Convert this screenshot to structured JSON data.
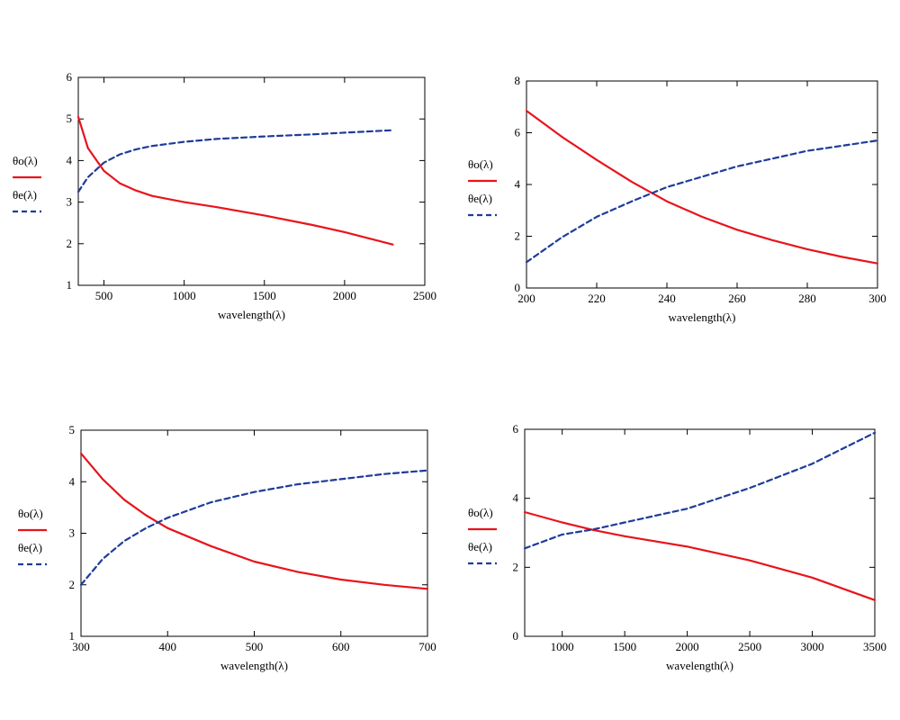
{
  "chart_data": [
    {
      "type": "line",
      "xlabel": "wavelength(λ)",
      "xlim": [
        340,
        2500
      ],
      "ylim": [
        1,
        6
      ],
      "xticks": [
        500,
        1000,
        1500,
        2000,
        2500
      ],
      "yticks": [
        1,
        2,
        3,
        4,
        5,
        6
      ],
      "legend": [
        "θo(λ)",
        "θe(λ)"
      ],
      "legend_position": "left-outside",
      "series": [
        {
          "name": "θo(λ)",
          "color": "#e8141c",
          "style": "solid",
          "x": [
            340,
            400,
            500,
            600,
            700,
            800,
            1000,
            1200,
            1500,
            1800,
            2000,
            2300
          ],
          "y": [
            5.05,
            4.3,
            3.75,
            3.45,
            3.28,
            3.15,
            3.0,
            2.88,
            2.68,
            2.45,
            2.28,
            1.98
          ]
        },
        {
          "name": "θe(λ)",
          "color": "#1f3c9a",
          "style": "dashed",
          "x": [
            340,
            400,
            500,
            600,
            700,
            800,
            1000,
            1200,
            1500,
            1800,
            2000,
            2300
          ],
          "y": [
            3.25,
            3.6,
            3.95,
            4.15,
            4.27,
            4.35,
            4.45,
            4.52,
            4.58,
            4.63,
            4.67,
            4.73
          ]
        }
      ]
    },
    {
      "type": "line",
      "xlabel": "wavelength(λ)",
      "xlim": [
        200,
        300
      ],
      "ylim": [
        0,
        8
      ],
      "xticks": [
        200,
        220,
        240,
        260,
        280,
        300
      ],
      "yticks": [
        0,
        2,
        4,
        6,
        8
      ],
      "legend": [
        "θo(λ)",
        "θe(λ)"
      ],
      "legend_position": "left-outside",
      "series": [
        {
          "name": "θo(λ)",
          "color": "#e8141c",
          "style": "solid",
          "x": [
            200,
            210,
            220,
            230,
            240,
            250,
            260,
            270,
            280,
            290,
            300
          ],
          "y": [
            6.85,
            5.85,
            4.95,
            4.1,
            3.35,
            2.75,
            2.25,
            1.85,
            1.5,
            1.2,
            0.95
          ]
        },
        {
          "name": "θe(λ)",
          "color": "#1f3c9a",
          "style": "dashed",
          "x": [
            200,
            210,
            220,
            230,
            240,
            250,
            260,
            270,
            280,
            290,
            300
          ],
          "y": [
            1.0,
            1.95,
            2.75,
            3.35,
            3.9,
            4.3,
            4.7,
            5.0,
            5.3,
            5.5,
            5.7
          ]
        }
      ]
    },
    {
      "type": "line",
      "xlabel": "wavelength(λ)",
      "xlim": [
        300,
        700
      ],
      "ylim": [
        1,
        5
      ],
      "xticks": [
        300,
        400,
        500,
        600,
        700
      ],
      "yticks": [
        1,
        2,
        3,
        4,
        5
      ],
      "legend": [
        "θo(λ)",
        "θe(λ)"
      ],
      "legend_position": "left-outside",
      "series": [
        {
          "name": "θo(λ)",
          "color": "#e8141c",
          "style": "solid",
          "x": [
            300,
            325,
            350,
            375,
            400,
            450,
            500,
            550,
            600,
            650,
            700
          ],
          "y": [
            4.55,
            4.05,
            3.65,
            3.35,
            3.1,
            2.75,
            2.45,
            2.25,
            2.1,
            2.0,
            1.92
          ]
        },
        {
          "name": "θe(λ)",
          "color": "#1f3c9a",
          "style": "dashed",
          "x": [
            300,
            325,
            350,
            375,
            400,
            450,
            500,
            550,
            600,
            650,
            700
          ],
          "y": [
            2.0,
            2.5,
            2.85,
            3.1,
            3.3,
            3.6,
            3.8,
            3.95,
            4.05,
            4.15,
            4.22
          ]
        }
      ]
    },
    {
      "type": "line",
      "xlabel": "wavelength(λ)",
      "xlim": [
        700,
        3500
      ],
      "ylim": [
        0,
        6
      ],
      "xticks": [
        1000,
        1500,
        2000,
        2500,
        3000,
        3500
      ],
      "yticks": [
        0,
        2,
        4,
        6
      ],
      "legend": [
        "θo(λ)",
        "θe(λ)"
      ],
      "legend_position": "left-outside",
      "series": [
        {
          "name": "θo(λ)",
          "color": "#e8141c",
          "style": "solid",
          "x": [
            700,
            1000,
            1250,
            1500,
            2000,
            2500,
            3000,
            3500
          ],
          "y": [
            3.6,
            3.3,
            3.08,
            2.9,
            2.6,
            2.2,
            1.7,
            1.05
          ]
        },
        {
          "name": "θe(λ)",
          "color": "#1f3c9a",
          "style": "dashed",
          "x": [
            700,
            1000,
            1250,
            1500,
            2000,
            2500,
            3000,
            3500
          ],
          "y": [
            2.55,
            2.95,
            3.1,
            3.3,
            3.7,
            4.3,
            5.0,
            5.9
          ]
        }
      ]
    }
  ]
}
